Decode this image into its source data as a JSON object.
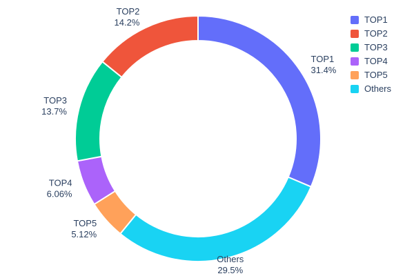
{
  "chart_data": {
    "type": "pie",
    "title": "",
    "donut_hole": 0.8,
    "labels": [
      "TOP1",
      "TOP2",
      "TOP3",
      "TOP4",
      "TOP5",
      "Others"
    ],
    "values": [
      31.4,
      14.2,
      13.7,
      6.06,
      5.12,
      29.5
    ],
    "percent_labels": [
      "31.4%",
      "14.2%",
      "13.7%",
      "6.06%",
      "5.12%",
      "29.5%"
    ],
    "colors": [
      "#636EFA",
      "#EF553B",
      "#00CC96",
      "#AB63FA",
      "#FFA15A",
      "#19D3F3"
    ],
    "clockwise_order": [
      "TOP1",
      "Others",
      "TOP5",
      "TOP4",
      "TOP3",
      "TOP2"
    ],
    "start_angle_deg": -90,
    "slice_border_color": "#ffffff",
    "label_text_color": "#2a3f5f",
    "legend_position": "top-right",
    "labels_position": "outside"
  }
}
